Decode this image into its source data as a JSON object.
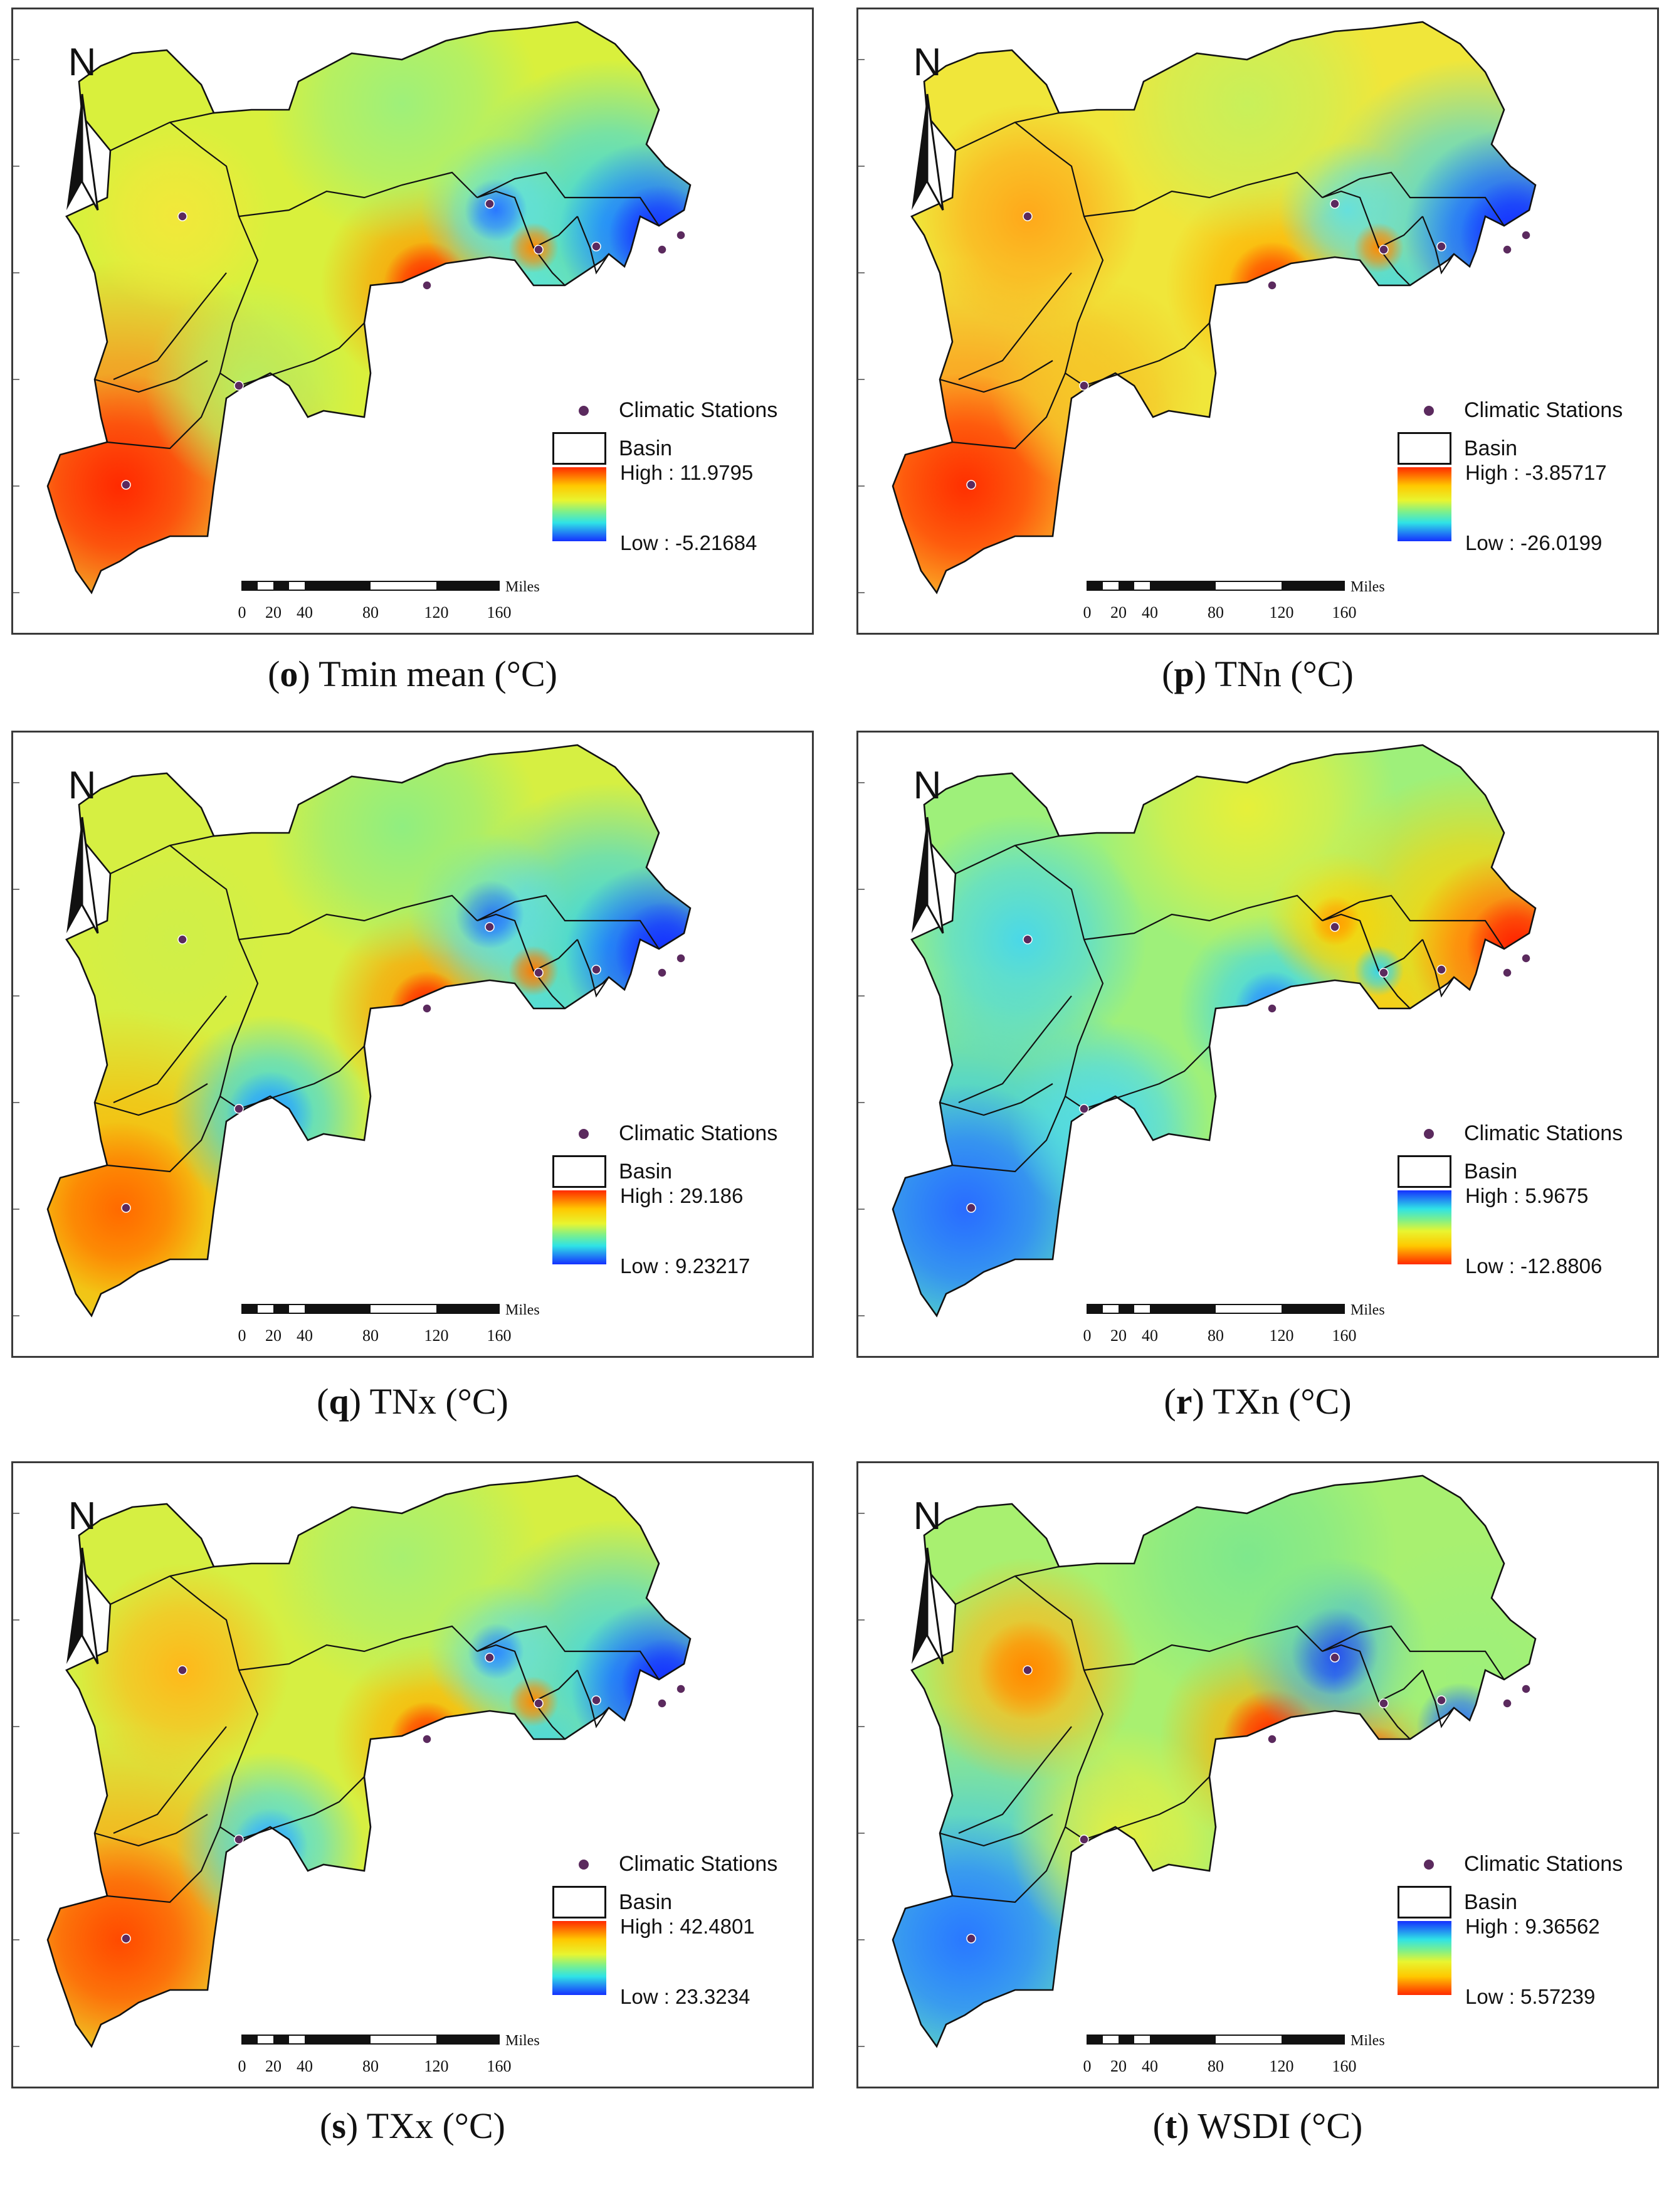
{
  "common": {
    "north_label": "N",
    "legend_stations": "Climatic Stations",
    "legend_basin": "Basin",
    "scale_unit": "Miles",
    "scale_ticks": [
      "0",
      "20",
      "40",
      "80",
      "120",
      "160"
    ]
  },
  "colors": {
    "station_dot": "#5b2a5e",
    "basin_line": "#111111",
    "frame": "#3a3a3a"
  },
  "panels": [
    {
      "letter": "o",
      "title": " Tmin mean (°C)",
      "high": "High : 11.9795",
      "low": "Low : -5.21684",
      "ramp": "red-high"
    },
    {
      "letter": "p",
      "title": " TNn (°C)",
      "high": "High : -3.85717",
      "low": "Low : -26.0199",
      "ramp": "red-high"
    },
    {
      "letter": "q",
      "title": " TNx (°C)",
      "high": "High : 29.186",
      "low": "Low : 9.23217",
      "ramp": "red-high"
    },
    {
      "letter": "r",
      "title": " TXn (°C)",
      "high": "High : 5.9675",
      "low": "Low : -12.8806",
      "ramp": "blue-high"
    },
    {
      "letter": "s",
      "title": " TXx (°C)",
      "high": "High : 42.4801",
      "low": "Low : 23.3234",
      "ramp": "red-high"
    },
    {
      "letter": "t",
      "title": " WSDI (°C)",
      "high": "High : 9.36562",
      "low": "Low : 5.57239",
      "ramp": "blue-high"
    }
  ]
}
